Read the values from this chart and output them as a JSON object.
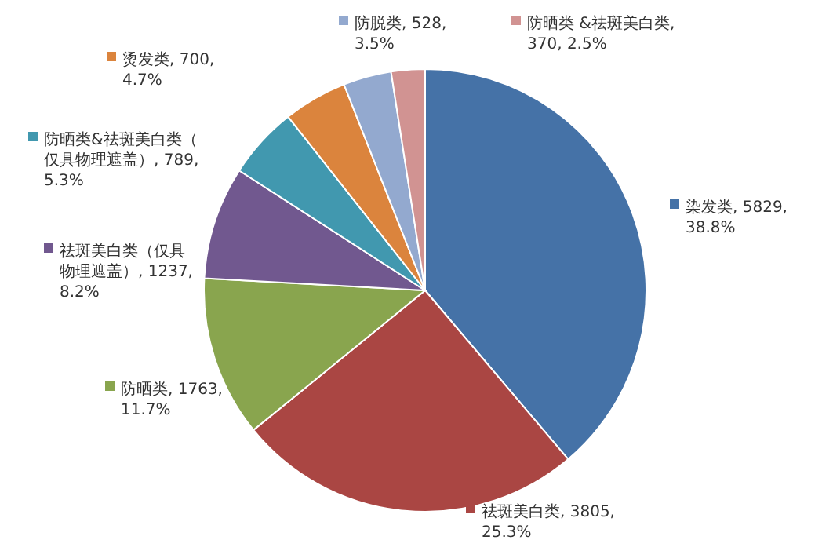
{
  "chart_data": {
    "type": "pie",
    "categories": [
      "染发类",
      "祛斑美白类",
      "防晒类",
      "祛斑美白类（仅具物理遮盖）",
      "防晒类&祛斑美白类（仅具物理遮盖）",
      "烫发类",
      "防脱类",
      "防晒类 &祛斑美白类"
    ],
    "values": [
      5829,
      3805,
      1763,
      1237,
      789,
      700,
      528,
      370
    ],
    "value_labels": [
      ", 5829, 38.8%",
      ", 3805, 25.3%",
      ", 1763, 11.7%",
      ", 1237, 8.2%",
      ", 789, 5.3%",
      ", 700, 4.7%",
      ", 528, 3.5%",
      ", 370, 2.5%"
    ],
    "colors": [
      "#4572a7",
      "#aa4643",
      "#89a54e",
      "#71588f",
      "#4198af",
      "#db843d",
      "#93a9cf",
      "#d19392"
    ],
    "legend": "left"
  }
}
